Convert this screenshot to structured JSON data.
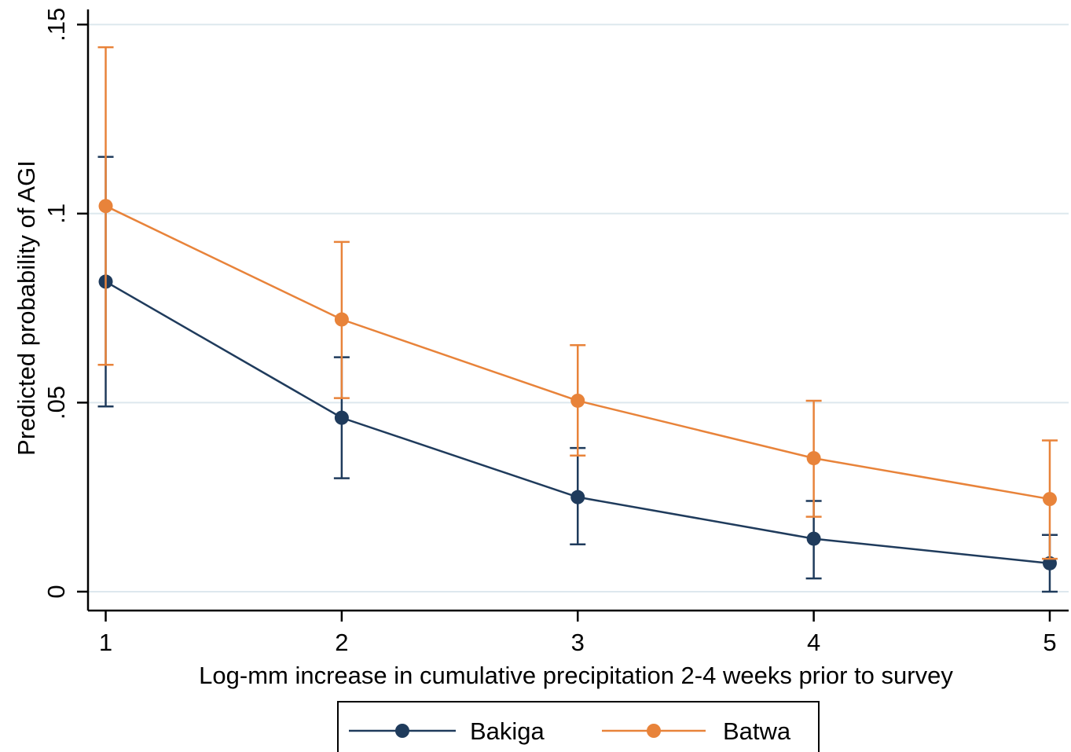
{
  "chart_data": {
    "type": "line",
    "xlabel": "Log-mm increase in cumulative precipitation 2-4 weeks prior to survey",
    "ylabel": "Predicted probability of AGI",
    "x": [
      1,
      2,
      3,
      4,
      5
    ],
    "x_ticks": [
      "1",
      "2",
      "3",
      "4",
      "5"
    ],
    "y_ticks": [
      {
        "value": 0,
        "label": "0"
      },
      {
        "value": 0.05,
        "label": ".05"
      },
      {
        "value": 0.1,
        "label": ".1"
      },
      {
        "value": 0.15,
        "label": ".15"
      }
    ],
    "xlim": [
      0.925,
      5.08
    ],
    "ylim": [
      -0.005,
      0.154
    ],
    "grid": "horizontal",
    "legend_position": "bottom",
    "series": [
      {
        "name": "Bakiga",
        "color": "#1f3b5c",
        "values": [
          0.082,
          0.046,
          0.025,
          0.014,
          0.0075
        ],
        "ci_lower": [
          0.049,
          0.03,
          0.0125,
          0.0035,
          0.0
        ],
        "ci_upper": [
          0.115,
          0.062,
          0.038,
          0.024,
          0.015
        ]
      },
      {
        "name": "Batwa",
        "color": "#e8833a",
        "values": [
          0.102,
          0.072,
          0.0505,
          0.0353,
          0.0245
        ],
        "ci_lower": [
          0.06,
          0.0512,
          0.036,
          0.0198,
          0.0087
        ],
        "ci_upper": [
          0.144,
          0.0925,
          0.0652,
          0.0505,
          0.04
        ]
      }
    ]
  }
}
